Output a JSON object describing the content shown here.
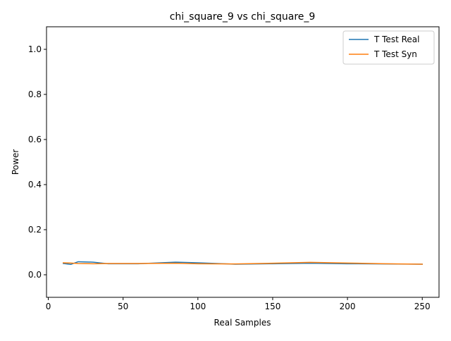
{
  "chart_data": {
    "type": "line",
    "title": "chi_square_9 vs chi_square_9",
    "xlabel": "Real Samples",
    "ylabel": "Power",
    "xlim": [
      -1.2,
      261.2
    ],
    "ylim": [
      -0.1,
      1.1
    ],
    "xticks": [
      0,
      50,
      100,
      150,
      200,
      250
    ],
    "yticks": [
      0.0,
      0.2,
      0.4,
      0.6,
      0.8,
      1.0
    ],
    "xtick_labels": [
      "0",
      "50",
      "100",
      "150",
      "200",
      "250"
    ],
    "ytick_labels": [
      "0.0",
      "0.2",
      "0.4",
      "0.6",
      "0.8",
      "1.0"
    ],
    "grid": false,
    "legend_position": "top-right",
    "series": [
      {
        "name": "T Test Real",
        "color": "#1f77b4",
        "x": [
          10,
          15,
          20,
          30,
          40,
          60,
          85,
          100,
          125,
          150,
          175,
          200,
          225,
          250
        ],
        "y": [
          0.05,
          0.046,
          0.058,
          0.056,
          0.049,
          0.049,
          0.056,
          0.053,
          0.047,
          0.049,
          0.051,
          0.049,
          0.048,
          0.047
        ]
      },
      {
        "name": "T Test Syn",
        "color": "#ff7f0e",
        "x": [
          10,
          15,
          20,
          30,
          40,
          60,
          85,
          100,
          125,
          150,
          175,
          200,
          225,
          250
        ],
        "y": [
          0.053,
          0.052,
          0.05,
          0.049,
          0.05,
          0.05,
          0.051,
          0.049,
          0.048,
          0.051,
          0.055,
          0.052,
          0.049,
          0.047
        ]
      }
    ]
  }
}
